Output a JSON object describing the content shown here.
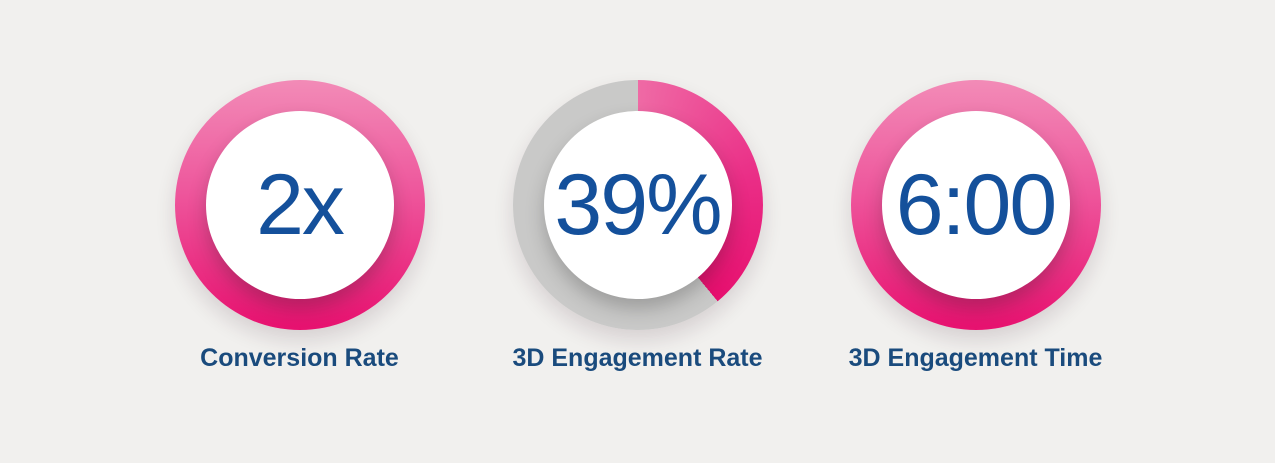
{
  "colors": {
    "background": "#f1f0ee",
    "ring_pink_top": "#f28bb7",
    "ring_pink_mid": "#ee569c",
    "ring_pink_bottom": "#e7116f",
    "arc_pink_start": "#ef6aa5",
    "arc_pink_mid": "#ea2d86",
    "arc_pink_end": "#e60f6e",
    "ring_gray": "#c9c9c8",
    "inner_circle": "#ffffff",
    "value_text": "#14509b",
    "label_text": "#1a4b7d"
  },
  "stats": [
    {
      "id": "conversion-rate",
      "value": "2x",
      "label": "Conversion Rate",
      "percent": 100
    },
    {
      "id": "3d-engagement-rate",
      "value": "39%",
      "label": "3D Engagement Rate",
      "percent": 39
    },
    {
      "id": "3d-engagement-time",
      "value": "6:00",
      "label": "3D Engagement Time",
      "percent": 100
    }
  ],
  "chart_data": [
    {
      "type": "pie",
      "subtype": "donut-gauge",
      "title": "Conversion Rate",
      "value_label": "2x",
      "percent_filled": 100,
      "ring_colors": {
        "filled": "pink-gradient",
        "empty": "none"
      }
    },
    {
      "type": "pie",
      "subtype": "donut-gauge",
      "title": "3D Engagement Rate",
      "value_label": "39%",
      "percent_filled": 39,
      "arc_start": "12-o'clock",
      "arc_direction": "clockwise",
      "ring_colors": {
        "filled": "pink-gradient",
        "empty": "gray"
      }
    },
    {
      "type": "pie",
      "subtype": "donut-gauge",
      "title": "3D Engagement Time",
      "value_label": "6:00",
      "percent_filled": 100,
      "ring_colors": {
        "filled": "pink-gradient",
        "empty": "none"
      }
    }
  ]
}
